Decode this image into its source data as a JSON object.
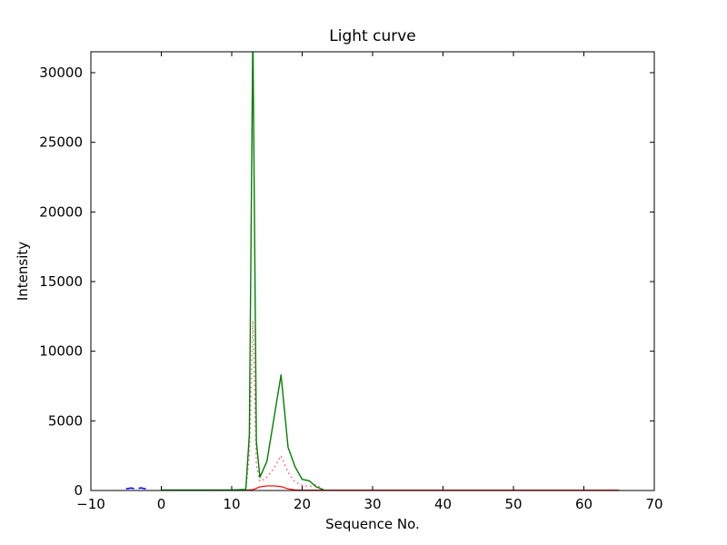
{
  "figure": {
    "title": "Light curve",
    "xlabel": "Sequence No.",
    "ylabel": "Intensity"
  },
  "chart_data": {
    "type": "line",
    "title": "Light curve",
    "xlabel": "Sequence No.",
    "ylabel": "Intensity",
    "xlim": [
      -10,
      70
    ],
    "ylim": [
      0,
      31500
    ],
    "xticks": [
      -10,
      0,
      10,
      20,
      30,
      40,
      50,
      60,
      70
    ],
    "xtick_labels": [
      "−10",
      "0",
      "10",
      "20",
      "30",
      "40",
      "50",
      "60",
      "70"
    ],
    "yticks": [
      0,
      5000,
      10000,
      15000,
      20000,
      25000,
      30000
    ],
    "ytick_labels": [
      "0",
      "5000",
      "10000",
      "15000",
      "20000",
      "25000",
      "30000"
    ],
    "grid": false,
    "legend": "none",
    "frame_color": "#000000",
    "background": "#ffffff",
    "series": [
      {
        "name": "blue-dashed",
        "color": "#0000ff",
        "line_style": "dashed",
        "line_width": 1.5,
        "x": [
          -5,
          -4.3,
          -3.6,
          -2.9,
          -2.2
        ],
        "y": [
          120,
          180,
          120,
          190,
          120
        ]
      },
      {
        "name": "red-solid",
        "color": "#ff0000",
        "line_style": "solid",
        "line_width": 1.2,
        "x": [
          0,
          5,
          10,
          12,
          13,
          14,
          15,
          16,
          17,
          18,
          19,
          20,
          25,
          30,
          40,
          50,
          60,
          65
        ],
        "y": [
          30,
          30,
          30,
          30,
          60,
          260,
          330,
          330,
          280,
          120,
          40,
          25,
          25,
          25,
          25,
          25,
          25,
          25
        ]
      },
      {
        "name": "pink-dotted",
        "color": "#ff5577",
        "line_style": "dotted",
        "line_width": 1.4,
        "x": [
          0,
          5,
          10,
          12,
          12.5,
          13,
          13.5,
          14,
          15,
          16,
          17,
          18,
          19,
          20,
          21,
          22,
          23
        ],
        "y": [
          30,
          30,
          30,
          60,
          2500,
          12200,
          1800,
          650,
          950,
          1600,
          2500,
          1300,
          600,
          380,
          280,
          420,
          60
        ]
      },
      {
        "name": "green-solid",
        "color": "#007f00",
        "line_style": "solid",
        "line_width": 1.4,
        "x": [
          0,
          5,
          10,
          12,
          12.5,
          13,
          13.5,
          14,
          15,
          16,
          17,
          18,
          19,
          20,
          21,
          22,
          23
        ],
        "y": [
          40,
          40,
          40,
          80,
          4000,
          33000,
          3500,
          950,
          2100,
          5200,
          8300,
          3100,
          1700,
          800,
          700,
          260,
          60
        ]
      }
    ]
  }
}
